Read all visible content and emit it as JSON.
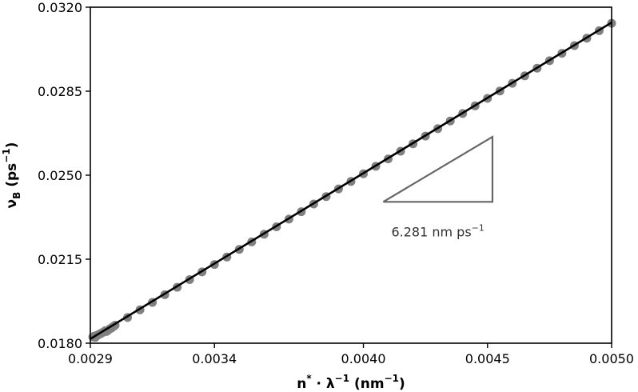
{
  "chart_data": {
    "type": "scatter",
    "title": "",
    "xlabel": "n* · λ⁻¹ (nm⁻¹)",
    "xlabel_main": "n",
    "xlabel_sup1": "*",
    "xlabel_mid": " · λ",
    "xlabel_sup2": "−1",
    "xlabel_unit": " (nm",
    "xlabel_sup3": "−1",
    "xlabel_end": ")",
    "ylabel": "ν_B (ps⁻¹)",
    "ylabel_main": "ν",
    "ylabel_sub": "B",
    "ylabel_unit": " (ps",
    "ylabel_sup": "−1",
    "ylabel_end": ")",
    "xlim": [
      0.0029,
      0.005
    ],
    "ylim": [
      0.018,
      0.032
    ],
    "xticks": [
      "0.0029",
      "0.0034",
      "0.0040",
      "0.0045",
      "0.0050"
    ],
    "xtick_values": [
      0.0029,
      0.0034,
      0.004,
      0.0045,
      0.005
    ],
    "yticks": [
      "0.0180",
      "0.0215",
      "0.0250",
      "0.0285",
      "0.0320"
    ],
    "ytick_values": [
      0.018,
      0.0215,
      0.025,
      0.0285,
      0.032
    ],
    "grid": false,
    "series": [
      {
        "kind": "scatter",
        "color": "#808080",
        "x": [
          0.00291,
          0.002915,
          0.00292,
          0.002925,
          0.00293,
          0.002935,
          0.00294,
          0.002945,
          0.00295,
          0.002955,
          0.00296,
          0.002965,
          0.00297,
          0.002975,
          0.00298,
          0.002985,
          0.00299,
          0.002995,
          0.003,
          0.00305,
          0.0031,
          0.00315,
          0.0032,
          0.00325,
          0.0033,
          0.00335,
          0.0034,
          0.00345,
          0.0035,
          0.00355,
          0.0036,
          0.00365,
          0.0037,
          0.00375,
          0.0038,
          0.00385,
          0.0039,
          0.00395,
          0.004,
          0.00405,
          0.0041,
          0.00415,
          0.0042,
          0.00425,
          0.0043,
          0.00435,
          0.0044,
          0.00445,
          0.0045,
          0.00455,
          0.0046,
          0.00465,
          0.0047,
          0.00475,
          0.0048,
          0.00485,
          0.0049,
          0.00495,
          0.005
        ],
        "y": [
          0.01826,
          0.01829,
          0.01824,
          0.01832,
          0.01834,
          0.01837,
          0.01839,
          0.01842,
          0.01845,
          0.01848,
          0.01852,
          0.01849,
          0.01853,
          0.01857,
          0.01861,
          0.01863,
          0.01868,
          0.01871,
          0.01875,
          0.01907,
          0.01939,
          0.0197,
          0.02002,
          0.02033,
          0.02065,
          0.02097,
          0.02128,
          0.02159,
          0.02191,
          0.02222,
          0.02254,
          0.02285,
          0.02317,
          0.02348,
          0.0238,
          0.02411,
          0.02443,
          0.02474,
          0.02506,
          0.02537,
          0.02568,
          0.026,
          0.02631,
          0.02663,
          0.02694,
          0.02726,
          0.02757,
          0.02789,
          0.0282,
          0.02851,
          0.02883,
          0.02914,
          0.02946,
          0.02977,
          0.03008,
          0.0304,
          0.03071,
          0.03102,
          0.03133
        ]
      },
      {
        "kind": "line",
        "color": "#000000",
        "x": [
          0.0029,
          0.005
        ],
        "y": [
          0.01818,
          0.03136
        ]
      }
    ],
    "annotations": [
      {
        "kind": "slope-triangle",
        "color": "#666666",
        "x0": 0.00408,
        "x1": 0.00452,
        "y0": 0.02389,
        "y1": 0.0266,
        "label": "6.281 nm ps",
        "label_sup": "−1"
      }
    ]
  }
}
